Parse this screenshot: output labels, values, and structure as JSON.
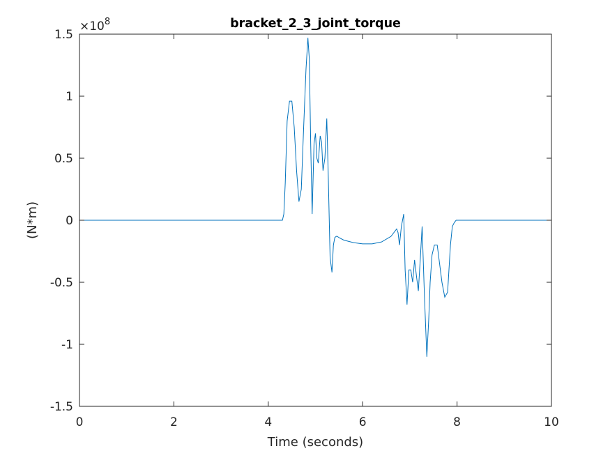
{
  "chart_data": {
    "type": "line",
    "title": "bracket_2_3_joint_torque",
    "xlabel": "Time (seconds)",
    "ylabel": "(N*m)",
    "y_exponent_base": "×10",
    "y_exponent_power": "8",
    "xlim": [
      0,
      10
    ],
    "ylim": [
      -1.5,
      1.5
    ],
    "xticks": [
      0,
      2,
      4,
      6,
      8,
      10
    ],
    "xtick_labels": [
      "0",
      "2",
      "4",
      "6",
      "8",
      "10"
    ],
    "yticks": [
      -1.5,
      -1,
      -0.5,
      0,
      0.5,
      1,
      1.5
    ],
    "ytick_labels": [
      "-1.5",
      "-1",
      "-0.5",
      "0",
      "0.5",
      "1",
      "1.5"
    ],
    "grid": false,
    "line_color": "#0072bd",
    "series": [
      {
        "x": [
          0,
          4.3,
          4.33,
          4.36,
          4.4,
          4.45,
          4.5,
          4.55,
          4.6,
          4.65,
          4.7,
          4.75,
          4.8,
          4.84,
          4.87,
          4.9,
          4.93,
          4.97,
          5.0,
          5.03,
          5.06,
          5.1,
          5.13,
          5.16,
          5.2,
          5.24,
          5.27,
          5.31,
          5.35,
          5.38,
          5.41,
          5.44,
          5.46,
          5.5,
          5.6,
          5.8,
          6.0,
          6.2,
          6.4,
          6.6,
          6.72,
          6.75,
          6.78,
          6.82,
          6.87,
          6.9,
          6.94,
          6.98,
          7.02,
          7.06,
          7.1,
          7.14,
          7.18,
          7.22,
          7.26,
          7.31,
          7.36,
          7.4,
          7.43,
          7.47,
          7.52,
          7.58,
          7.63,
          7.68,
          7.74,
          7.8,
          7.86,
          7.9,
          7.94,
          7.98,
          8.02,
          10.0
        ],
        "y": [
          0,
          0,
          0.05,
          0.3,
          0.8,
          0.96,
          0.96,
          0.75,
          0.4,
          0.15,
          0.25,
          0.75,
          1.22,
          1.47,
          1.3,
          0.6,
          0.05,
          0.62,
          0.7,
          0.5,
          0.46,
          0.68,
          0.63,
          0.4,
          0.5,
          0.82,
          0.38,
          -0.3,
          -0.42,
          -0.2,
          -0.14,
          -0.13,
          -0.13,
          -0.14,
          -0.16,
          -0.18,
          -0.19,
          -0.19,
          -0.175,
          -0.13,
          -0.07,
          -0.1,
          -0.2,
          -0.05,
          0.05,
          -0.4,
          -0.68,
          -0.4,
          -0.4,
          -0.5,
          -0.32,
          -0.45,
          -0.57,
          -0.32,
          -0.05,
          -0.62,
          -1.1,
          -0.8,
          -0.5,
          -0.28,
          -0.2,
          -0.2,
          -0.35,
          -0.5,
          -0.62,
          -0.58,
          -0.2,
          -0.05,
          -0.02,
          0,
          0,
          0
        ]
      }
    ]
  }
}
